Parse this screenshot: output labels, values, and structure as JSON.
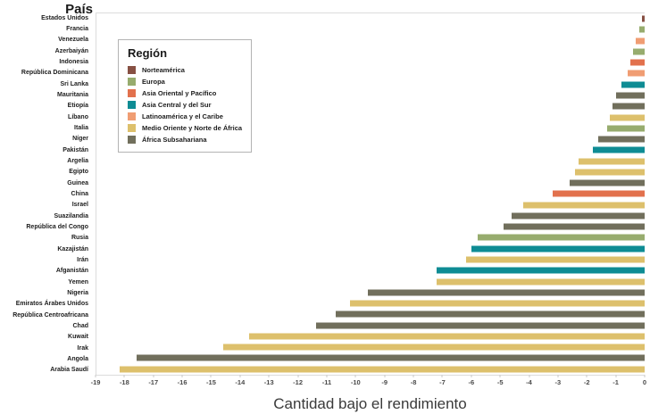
{
  "y_header": "País",
  "chart_data": {
    "type": "bar",
    "orientation": "horizontal",
    "xlabel": "Cantidad bajo el rendimiento",
    "ylabel": "País",
    "xlim": [
      -19,
      0
    ],
    "x_ticks": [
      -19,
      -18,
      -17,
      -16,
      -15,
      -14,
      -13,
      -12,
      -11,
      -10,
      -9,
      -8,
      -7,
      -6,
      -5,
      -4,
      -3,
      -2,
      -1,
      0
    ],
    "grid": false,
    "legend": {
      "title": "Región",
      "position": "upper-left-inside",
      "entries": [
        {
          "id": "na",
          "label": "Norteamérica",
          "color": "#875043"
        },
        {
          "id": "eu",
          "label": "Europa",
          "color": "#97AC6E"
        },
        {
          "id": "eap",
          "label": "Asia Oriental y Pacífico",
          "color": "#E2714D"
        },
        {
          "id": "acs",
          "label": "Asia Central y del Sur",
          "color": "#0E8C94"
        },
        {
          "id": "lac",
          "label": "Latinoamérica y el Caribe",
          "color": "#F09D73"
        },
        {
          "id": "mena",
          "label": "Medio Oriente  y Norte de África",
          "color": "#DDC06C"
        },
        {
          "id": "ssa",
          "label": "África Subsahariana",
          "color": "#716F5C"
        }
      ]
    },
    "rows": [
      {
        "country": "Estados Unidos",
        "region": "na",
        "value": -0.1
      },
      {
        "country": "Francia",
        "region": "eu",
        "value": -0.2
      },
      {
        "country": "Venezuela",
        "region": "lac",
        "value": -0.3
      },
      {
        "country": "Azerbaiyán",
        "region": "eu",
        "value": -0.4
      },
      {
        "country": "Indonesia",
        "region": "eap",
        "value": -0.5
      },
      {
        "country": "República Dominicana",
        "region": "lac",
        "value": -0.6
      },
      {
        "country": "Sri Lanka",
        "region": "acs",
        "value": -0.8
      },
      {
        "country": "Mauritania",
        "region": "ssa",
        "value": -1.0
      },
      {
        "country": "Etiopía",
        "region": "ssa",
        "value": -1.1
      },
      {
        "country": "Líbano",
        "region": "mena",
        "value": -1.2
      },
      {
        "country": "Italia",
        "region": "eu",
        "value": -1.3
      },
      {
        "country": "Níger",
        "region": "ssa",
        "value": -1.6
      },
      {
        "country": "Pakistán",
        "region": "acs",
        "value": -1.8
      },
      {
        "country": "Argelia",
        "region": "mena",
        "value": -2.3
      },
      {
        "country": "Egipto",
        "region": "mena",
        "value": -2.4
      },
      {
        "country": "Guinea",
        "region": "ssa",
        "value": -2.6
      },
      {
        "country": "China",
        "region": "eap",
        "value": -3.2
      },
      {
        "country": "Israel",
        "region": "mena",
        "value": -4.2
      },
      {
        "country": "Suazilandia",
        "region": "ssa",
        "value": -4.6
      },
      {
        "country": "República del Congo",
        "region": "ssa",
        "value": -4.9
      },
      {
        "country": "Rusia",
        "region": "eu",
        "value": -5.8
      },
      {
        "country": "Kazajistán",
        "region": "acs",
        "value": -6.0
      },
      {
        "country": "Irán",
        "region": "mena",
        "value": -6.2
      },
      {
        "country": "Afganistán",
        "region": "acs",
        "value": -7.2
      },
      {
        "country": "Yemen",
        "region": "mena",
        "value": -7.2
      },
      {
        "country": "Nigeria",
        "region": "ssa",
        "value": -9.6
      },
      {
        "country": "Emiratos Árabes Unidos",
        "region": "mena",
        "value": -10.2
      },
      {
        "country": "República Centroafricana",
        "region": "ssa",
        "value": -10.7
      },
      {
        "country": "Chad",
        "region": "ssa",
        "value": -11.4
      },
      {
        "country": "Kuwait",
        "region": "mena",
        "value": -13.7
      },
      {
        "country": "Irak",
        "region": "mena",
        "value": -14.6
      },
      {
        "country": "Angola",
        "region": "ssa",
        "value": -17.6
      },
      {
        "country": "Arabia Saudí",
        "region": "mena",
        "value": -18.2
      }
    ]
  }
}
